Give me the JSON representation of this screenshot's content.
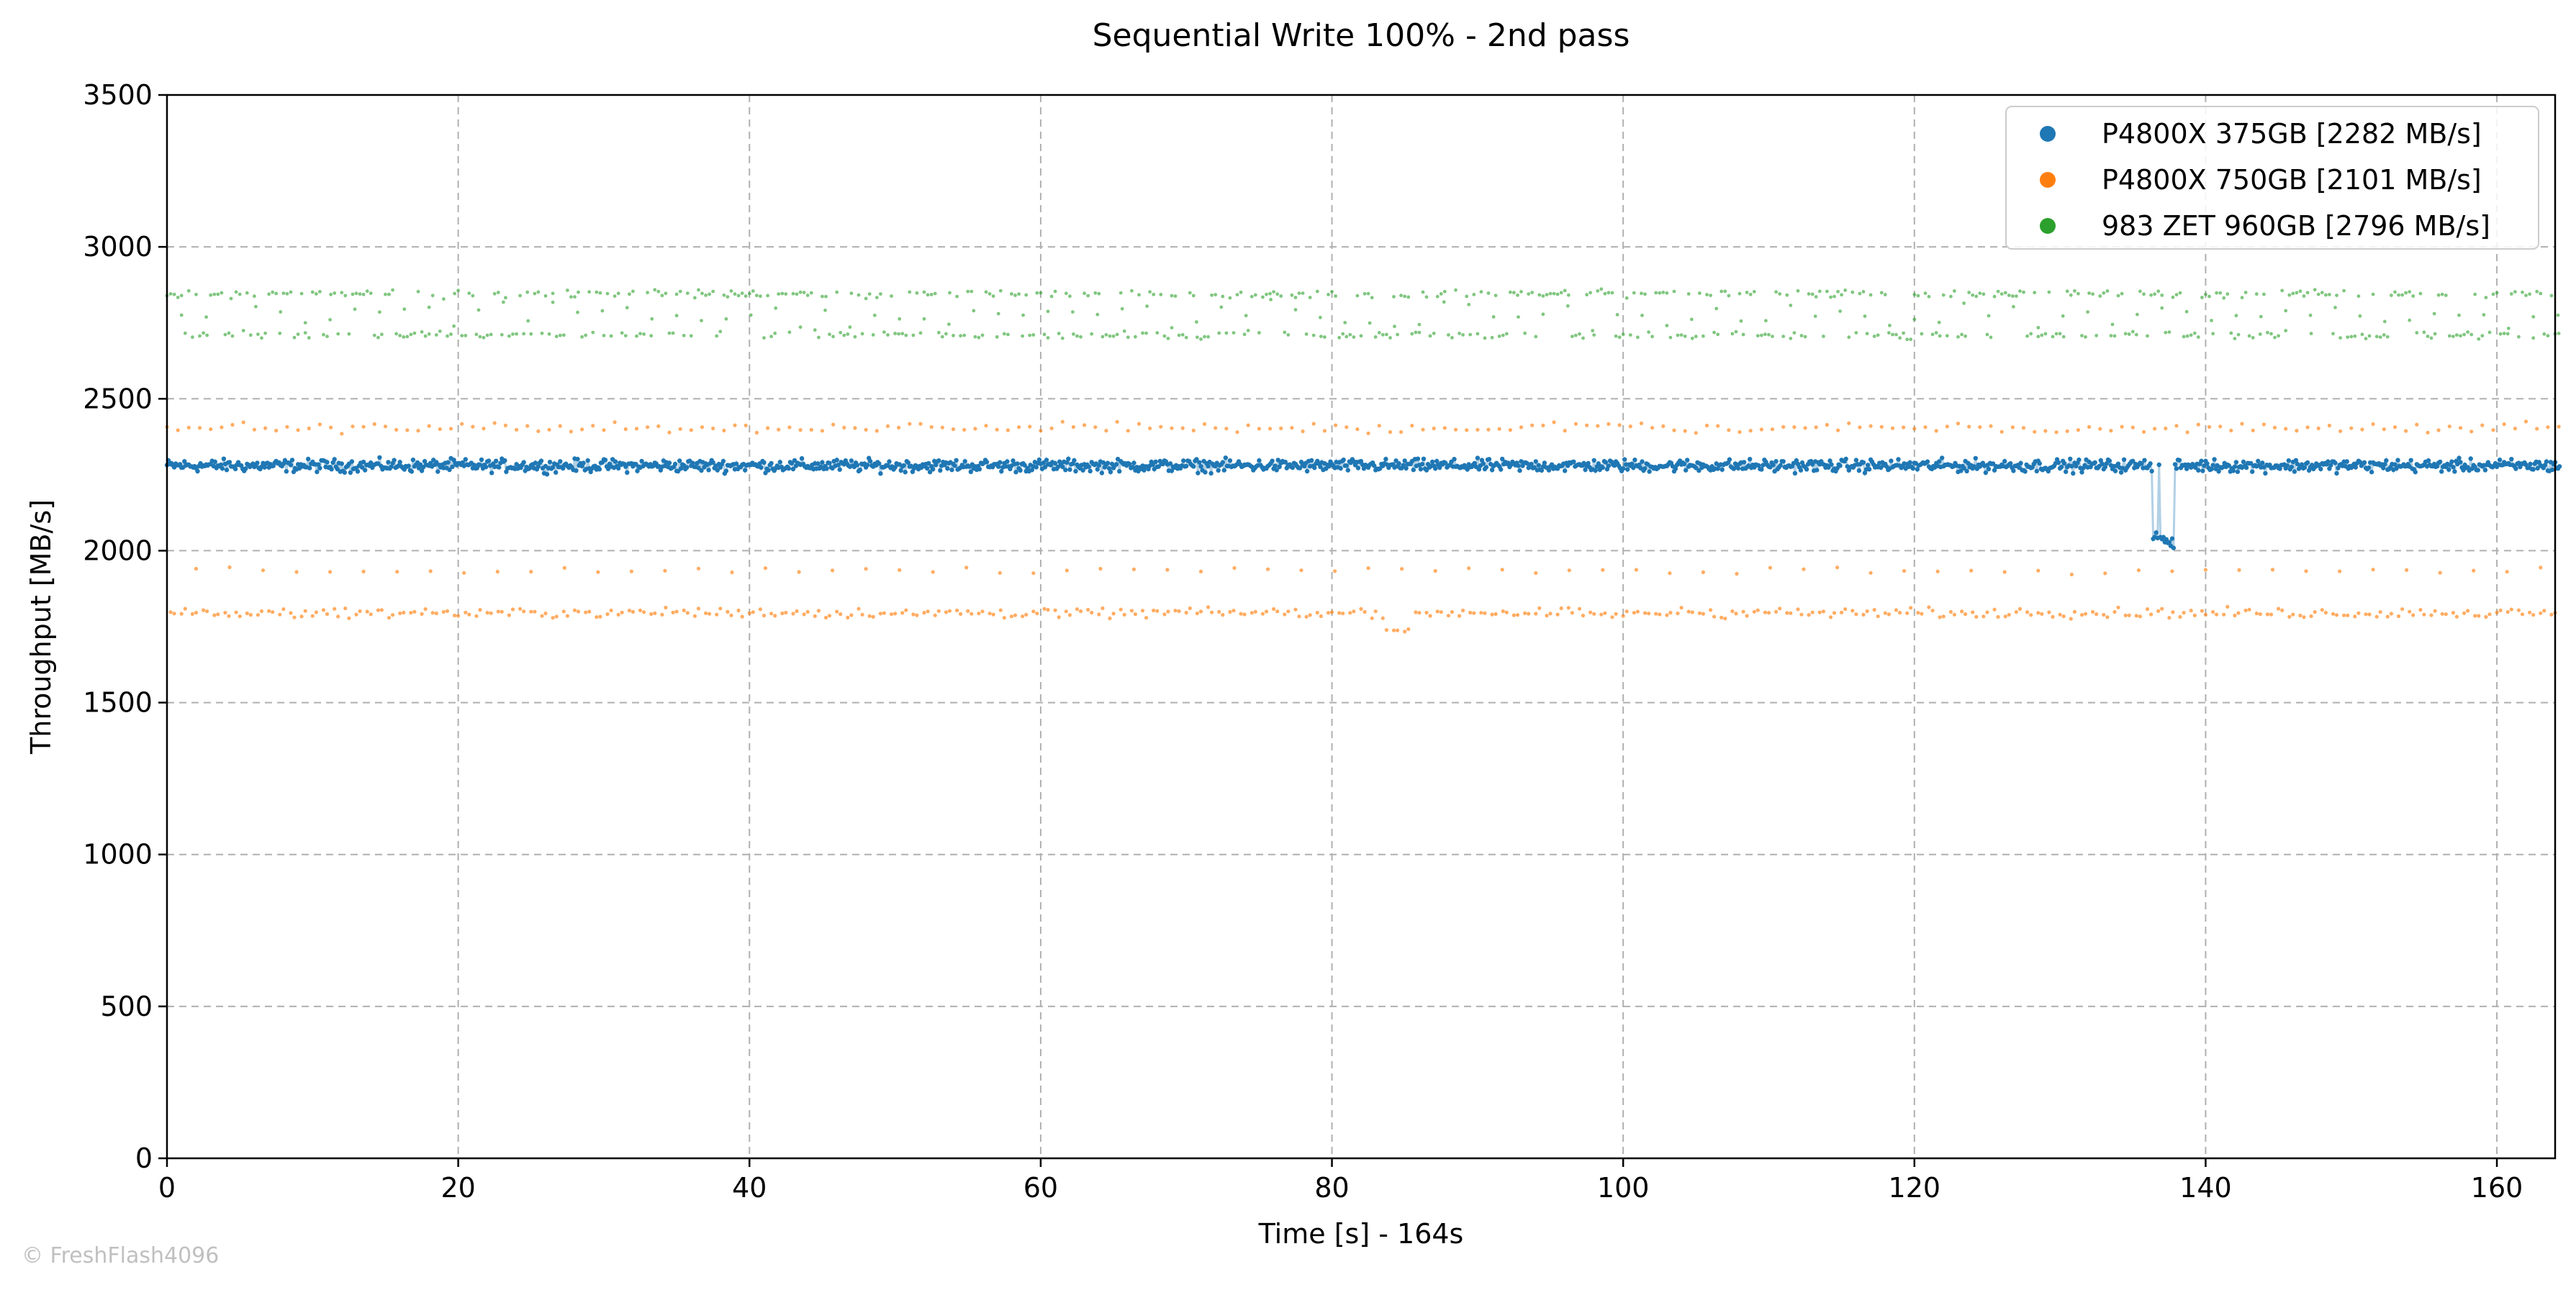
{
  "chart_data": {
    "type": "scatter",
    "title": "Sequential Write 100% - 2nd pass",
    "xlabel": "Time [s] - 164s",
    "ylabel": "Throughput [MB/s]",
    "xlim": [
      0,
      164
    ],
    "ylim": [
      0,
      3500
    ],
    "x_ticks": [
      0,
      20,
      40,
      60,
      80,
      100,
      120,
      140,
      160
    ],
    "y_ticks": [
      0,
      500,
      1000,
      1500,
      2000,
      2500,
      3000,
      3500
    ],
    "grid": true,
    "legend_position": "top-right",
    "series": [
      {
        "name": "P4800X 375GB [2282 MB/s]",
        "color": "#1f77b4",
        "mean": 2282,
        "bands": [
          2280
        ],
        "dips": [
          [
            136.5,
            2050
          ],
          [
            137.0,
            2040
          ],
          [
            137.3,
            2030
          ],
          [
            137.6,
            2020
          ]
        ]
      },
      {
        "name": "P4800X 750GB [2101 MB/s]",
        "color": "#ff7f0e",
        "mean": 2101,
        "bands": [
          2405,
          1795,
          1935
        ],
        "dips": [
          [
            84.0,
            1740
          ],
          [
            84.5,
            1735
          ],
          [
            85.0,
            1730
          ]
        ]
      },
      {
        "name": "983 ZET 960GB [2796 MB/s]",
        "color": "#2ca02c",
        "mean": 2796,
        "bands": [
          2845,
          2710,
          2780
        ],
        "dips": []
      }
    ]
  },
  "watermark": "© FreshFlash4096"
}
